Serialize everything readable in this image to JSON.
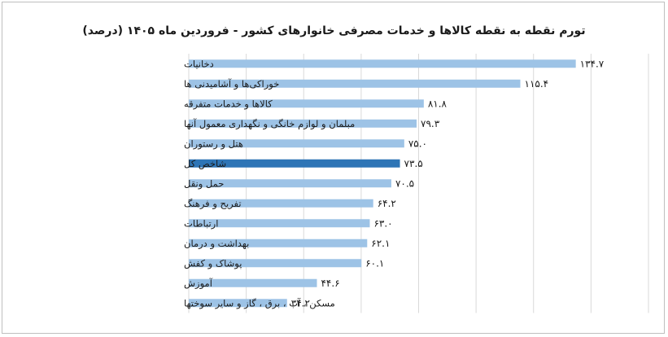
{
  "chart_data": {
    "type": "bar",
    "orientation": "horizontal",
    "title": "تورم نقطه به نقطه کالاها و خدمات مصرفی خانوارهای کشور - فروردین ماه ۱۴۰۵ (درصد)",
    "xlabel": "",
    "ylabel": "",
    "xlim": [
      0,
      160
    ],
    "grid": true,
    "categories": [
      "دخانیات",
      "خوراکی‌ها و آشامیدنی ها",
      "کالاها و خدمات متفرقه",
      "مبلمان و لوازم خانگی و نگهداری معمول آنها",
      "هتل و رستوران",
      "شاخص کل",
      "حمل ونقل",
      "تفریح و فرهنگ",
      "ارتباطات",
      "بهداشت و درمان",
      "پوشاک و کفش",
      "آموزش",
      "مسکن ، آب ، برق ، گاز و سایر سوختها"
    ],
    "values": [
      134.7,
      115.4,
      81.8,
      79.3,
      75.0,
      73.5,
      70.5,
      64.2,
      63.0,
      62.1,
      60.1,
      44.6,
      34.2
    ],
    "value_labels": [
      "۱۳۴.۷",
      "۱۱۵.۴",
      "۸۱.۸",
      "۷۹.۳",
      "۷۵.۰",
      "۷۳.۵",
      "۷۰.۵",
      "۶۴.۲",
      "۶۳.۰",
      "۶۲.۱",
      "۶۰.۱",
      "۴۴.۶",
      "۳۴.۲"
    ],
    "highlight_index": 5,
    "colors": {
      "bar": "#9dc3e6",
      "highlight": "#2e75b6",
      "grid": "#d9d9d9"
    }
  }
}
